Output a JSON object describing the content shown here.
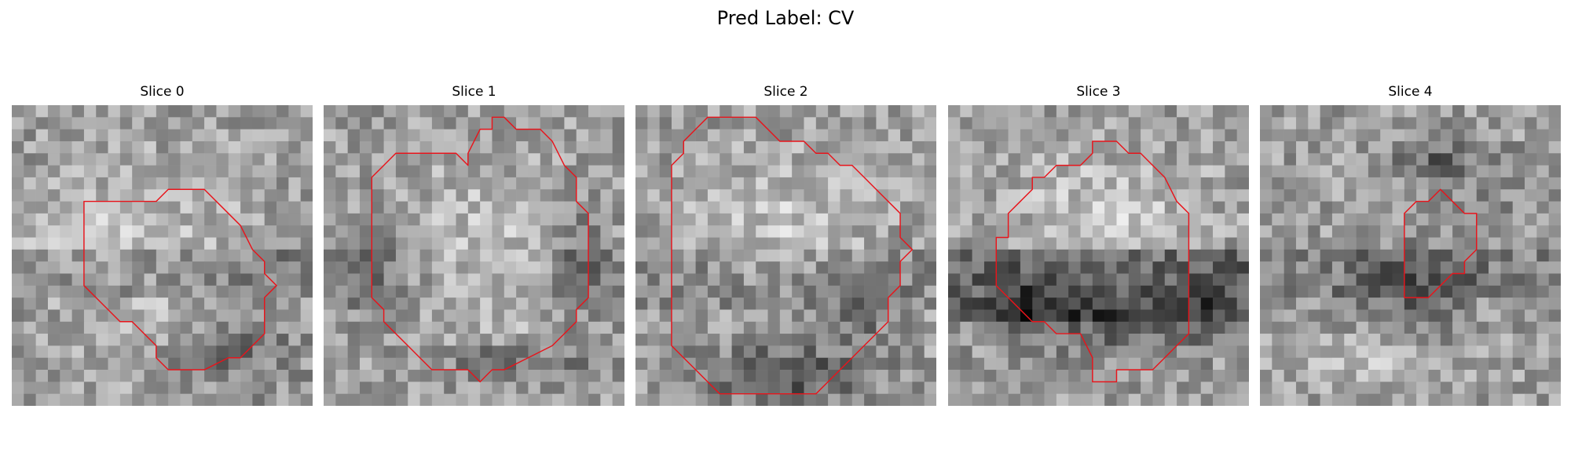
{
  "figure": {
    "title": "Pred Label: CV"
  },
  "panels": [
    {
      "title": "Slice 0",
      "seed": 101,
      "blobs": [
        {
          "x": 12,
          "y": 12,
          "rx": 9,
          "ry": 9,
          "amp": 0.12
        },
        {
          "x": 18,
          "y": 20,
          "rx": 6,
          "ry": 4,
          "amp": -0.18
        },
        {
          "x": 3,
          "y": 10,
          "rx": 5,
          "ry": 4,
          "amp": 0.12
        }
      ],
      "band": {
        "from": 12,
        "to": 15,
        "amp": -0.12
      },
      "contour": [
        [
          6,
          8
        ],
        [
          12,
          8
        ],
        [
          13,
          7
        ],
        [
          16,
          7
        ],
        [
          17,
          8
        ],
        [
          19,
          10
        ],
        [
          20,
          12
        ],
        [
          21,
          13
        ],
        [
          21,
          14
        ],
        [
          22,
          15
        ],
        [
          21,
          16
        ],
        [
          21,
          19
        ],
        [
          20,
          20
        ],
        [
          19,
          21
        ],
        [
          18,
          21
        ],
        [
          16,
          22
        ],
        [
          13,
          22
        ],
        [
          12,
          21
        ],
        [
          12,
          20
        ],
        [
          11,
          19
        ],
        [
          10,
          18
        ],
        [
          9,
          18
        ],
        [
          7,
          16
        ],
        [
          6,
          15
        ],
        [
          6,
          8
        ]
      ]
    },
    {
      "title": "Slice 1",
      "seed": 202,
      "blobs": [
        {
          "x": 13,
          "y": 12,
          "rx": 9,
          "ry": 9,
          "amp": 0.14
        },
        {
          "x": 15,
          "y": 21,
          "rx": 7,
          "ry": 2,
          "amp": -0.22
        },
        {
          "x": 21,
          "y": 13,
          "rx": 3,
          "ry": 6,
          "amp": -0.2
        },
        {
          "x": 4,
          "y": 14,
          "rx": 3,
          "ry": 5,
          "amp": -0.18
        }
      ],
      "band": {
        "from": 12,
        "to": 16,
        "amp": -0.05
      },
      "contour": [
        [
          5,
          5
        ],
        [
          6,
          4
        ],
        [
          9,
          4
        ],
        [
          11,
          4
        ],
        [
          12,
          5
        ],
        [
          12,
          4
        ],
        [
          13,
          2
        ],
        [
          14,
          2
        ],
        [
          14,
          1
        ],
        [
          15,
          1
        ],
        [
          16,
          2
        ],
        [
          18,
          2
        ],
        [
          19,
          3
        ],
        [
          20,
          5
        ],
        [
          21,
          6
        ],
        [
          21,
          8
        ],
        [
          22,
          9
        ],
        [
          22,
          13
        ],
        [
          22,
          16
        ],
        [
          21,
          17
        ],
        [
          21,
          18
        ],
        [
          20,
          19
        ],
        [
          19,
          20
        ],
        [
          17,
          21
        ],
        [
          15,
          22
        ],
        [
          14,
          22
        ],
        [
          13,
          23
        ],
        [
          12,
          22
        ],
        [
          9,
          22
        ],
        [
          8,
          21
        ],
        [
          7,
          20
        ],
        [
          6,
          19
        ],
        [
          5,
          18
        ],
        [
          5,
          17
        ],
        [
          4,
          16
        ],
        [
          4,
          6
        ],
        [
          5,
          5
        ]
      ]
    },
    {
      "title": "Slice 2",
      "seed": 303,
      "blobs": [
        {
          "x": 12,
          "y": 9,
          "rx": 9,
          "ry": 6,
          "amp": 0.14
        },
        {
          "x": 12,
          "y": 22,
          "rx": 8,
          "ry": 3,
          "amp": -0.3
        },
        {
          "x": 18,
          "y": 17,
          "rx": 3,
          "ry": 4,
          "amp": -0.15
        }
      ],
      "band": {
        "from": 12,
        "to": 16,
        "amp": -0.08
      },
      "contour": [
        [
          4,
          4
        ],
        [
          4,
          3
        ],
        [
          5,
          2
        ],
        [
          6,
          1
        ],
        [
          8,
          1
        ],
        [
          10,
          1
        ],
        [
          11,
          2
        ],
        [
          12,
          3
        ],
        [
          14,
          3
        ],
        [
          15,
          4
        ],
        [
          16,
          4
        ],
        [
          17,
          5
        ],
        [
          18,
          5
        ],
        [
          19,
          6
        ],
        [
          20,
          7
        ],
        [
          21,
          8
        ],
        [
          22,
          9
        ],
        [
          22,
          11
        ],
        [
          23,
          12
        ],
        [
          22,
          13
        ],
        [
          22,
          15
        ],
        [
          21,
          16
        ],
        [
          21,
          18
        ],
        [
          20,
          19
        ],
        [
          19,
          20
        ],
        [
          18,
          21
        ],
        [
          17,
          22
        ],
        [
          16,
          23
        ],
        [
          15,
          24
        ],
        [
          13,
          24
        ],
        [
          9,
          24
        ],
        [
          7,
          24
        ],
        [
          6,
          23
        ],
        [
          5,
          22
        ],
        [
          4,
          21
        ],
        [
          3,
          20
        ],
        [
          3,
          5
        ],
        [
          4,
          4
        ]
      ]
    },
    {
      "title": "Slice 3",
      "seed": 404,
      "blobs": [
        {
          "x": 13,
          "y": 8,
          "rx": 9,
          "ry": 5,
          "amp": 0.16
        },
        {
          "x": 13,
          "y": 18,
          "rx": 10,
          "ry": 3,
          "amp": -0.25
        },
        {
          "x": 6,
          "y": 16,
          "rx": 3,
          "ry": 3,
          "amp": -0.18
        },
        {
          "x": 20,
          "y": 16,
          "rx": 3,
          "ry": 3,
          "amp": -0.15
        }
      ],
      "band": {
        "from": 12,
        "to": 17,
        "amp": -0.22
      },
      "contour": [
        [
          4,
          12
        ],
        [
          4,
          11
        ],
        [
          5,
          11
        ],
        [
          5,
          9
        ],
        [
          6,
          8
        ],
        [
          7,
          7
        ],
        [
          7,
          6
        ],
        [
          8,
          6
        ],
        [
          9,
          5
        ],
        [
          9,
          5
        ],
        [
          11,
          5
        ],
        [
          12,
          4
        ],
        [
          12,
          3
        ],
        [
          13,
          3
        ],
        [
          14,
          3
        ],
        [
          15,
          4
        ],
        [
          16,
          4
        ],
        [
          17,
          5
        ],
        [
          18,
          6
        ],
        [
          19,
          8
        ],
        [
          20,
          9
        ],
        [
          20,
          13
        ],
        [
          20,
          19
        ],
        [
          19,
          20
        ],
        [
          18,
          21
        ],
        [
          17,
          22
        ],
        [
          16,
          22
        ],
        [
          15,
          22
        ],
        [
          14,
          22
        ],
        [
          14,
          23
        ],
        [
          13,
          23
        ],
        [
          12,
          23
        ],
        [
          12,
          21
        ],
        [
          11,
          19
        ],
        [
          10,
          19
        ],
        [
          9,
          19
        ],
        [
          8,
          18
        ],
        [
          7,
          18
        ],
        [
          6,
          17
        ],
        [
          5,
          16
        ],
        [
          4,
          15
        ],
        [
          4,
          12
        ]
      ]
    },
    {
      "title": "Slice 4",
      "seed": 505,
      "blobs": [
        {
          "x": 12,
          "y": 15,
          "rx": 6,
          "ry": 4,
          "amp": -0.24
        },
        {
          "x": 14,
          "y": 4,
          "rx": 4,
          "ry": 3,
          "amp": -0.22
        },
        {
          "x": 9,
          "y": 21,
          "rx": 6,
          "ry": 3,
          "amp": 0.12
        },
        {
          "x": 20,
          "y": 6,
          "rx": 3,
          "ry": 3,
          "amp": -0.1
        }
      ],
      "band": {
        "from": 12,
        "to": 15,
        "amp": -0.1
      },
      "contour": [
        [
          12,
          9
        ],
        [
          13,
          8
        ],
        [
          14,
          8
        ],
        [
          15,
          7
        ],
        [
          16,
          8
        ],
        [
          17,
          9
        ],
        [
          18,
          9
        ],
        [
          18,
          12
        ],
        [
          17,
          13
        ],
        [
          17,
          14
        ],
        [
          16,
          14
        ],
        [
          15,
          15
        ],
        [
          14,
          16
        ],
        [
          13,
          16
        ],
        [
          12,
          16
        ],
        [
          12,
          15
        ],
        [
          12,
          9
        ]
      ]
    }
  ]
}
